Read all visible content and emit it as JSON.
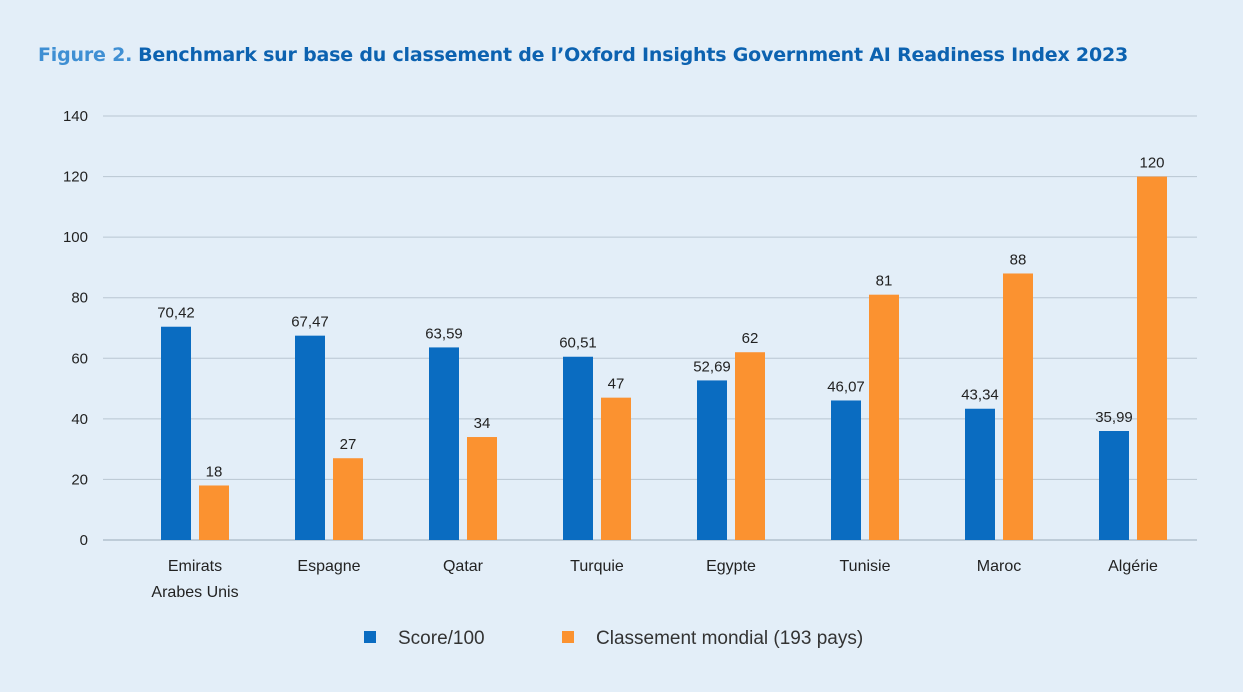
{
  "title": {
    "prefix": "Figure 2.",
    "text": "Benchmark sur base du classement de l’Oxford Insights Government  AI Readiness Index 2023"
  },
  "colors": {
    "series_1": "#0a6cc1",
    "series_2": "#fb9230",
    "grid": "#b9c6d2",
    "background": "#e3eef8"
  },
  "chart_data": {
    "type": "bar",
    "title": "Benchmark sur base du classement de l’Oxford Insights Government  AI Readiness Index 2023",
    "xlabel": "",
    "ylabel": "",
    "ylim": [
      0,
      140
    ],
    "yticks": [
      0,
      20,
      40,
      60,
      80,
      100,
      120,
      140
    ],
    "grid": true,
    "legend_position": "bottom",
    "categories": [
      [
        "Emirats",
        "Arabes Unis"
      ],
      [
        "Espagne"
      ],
      [
        "Qatar"
      ],
      [
        "Turquie"
      ],
      [
        "Egypte"
      ],
      [
        "Tunisie"
      ],
      [
        "Maroc"
      ],
      [
        "Algérie"
      ]
    ],
    "series": [
      {
        "name": "Score/100",
        "values": [
          70.42,
          67.47,
          63.59,
          60.51,
          52.69,
          46.07,
          43.34,
          35.99
        ],
        "labels": [
          "70,42",
          "67,47",
          "63,59",
          "60,51",
          "52,69",
          "46,07",
          "43,34",
          "35,99"
        ]
      },
      {
        "name": "Classement mondial (193 pays)",
        "values": [
          18,
          27,
          34,
          47,
          62,
          81,
          88,
          120
        ],
        "labels": [
          "18",
          "27",
          "34",
          "47",
          "62",
          "81",
          "88",
          "120"
        ]
      }
    ]
  }
}
